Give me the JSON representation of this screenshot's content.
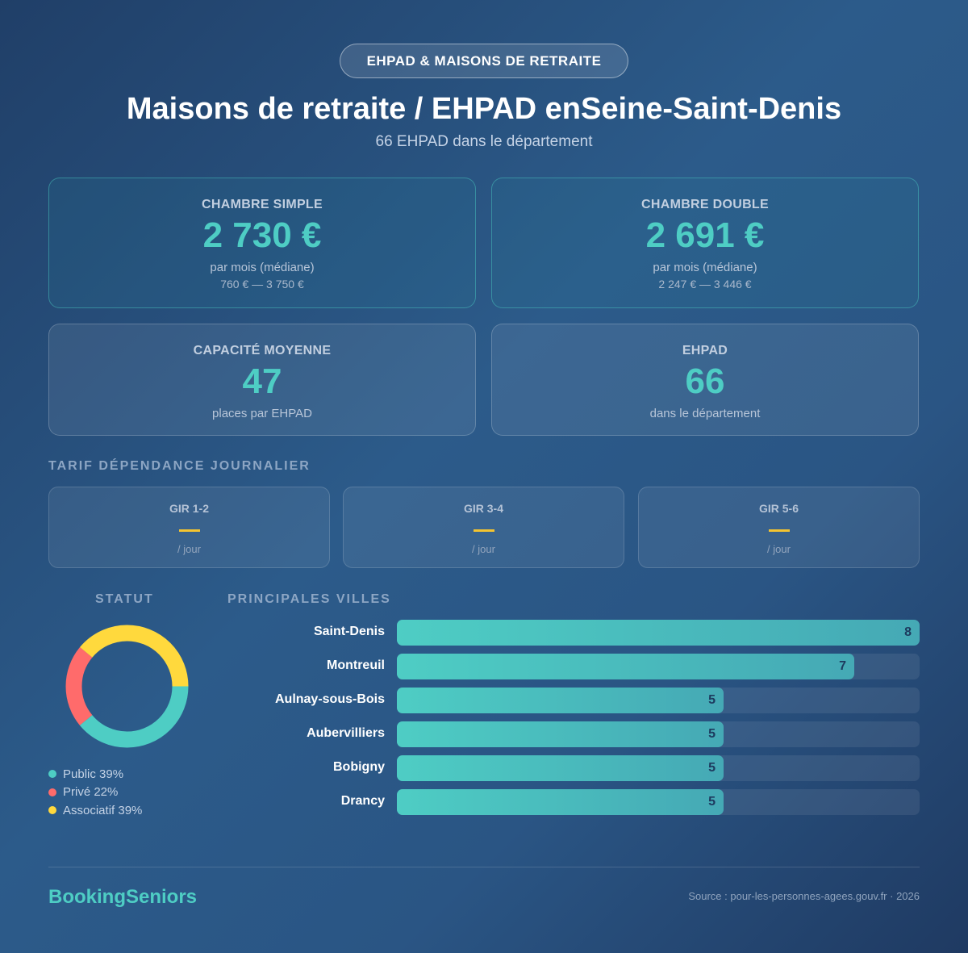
{
  "badge": "EHPAD & MAISONS DE RETRAITE",
  "title": "Maisons de retraite / EHPAD enSeine-Saint-Denis",
  "subtitle": "66 EHPAD dans le département",
  "cards": [
    {
      "label": "CHAMBRE SIMPLE",
      "value": "2 730 €",
      "unit": "par mois (médiane)",
      "range": "760 € — 3 750 €"
    },
    {
      "label": "CHAMBRE DOUBLE",
      "value": "2 691 €",
      "unit": "par mois (médiane)",
      "range": "2 247 € — 3 446 €"
    },
    {
      "label": "CAPACITÉ MOYENNE",
      "value": "47",
      "unit": "places par EHPAD"
    },
    {
      "label": "EHPAD",
      "value": "66",
      "unit": "dans le département"
    }
  ],
  "tarif": {
    "title": "TARIF DÉPENDANCE JOURNALIER",
    "items": [
      {
        "label": "GIR 1-2",
        "unit": "/ jour"
      },
      {
        "label": "GIR 3-4",
        "unit": "/ jour"
      },
      {
        "label": "GIR 5-6",
        "unit": "/ jour"
      }
    ]
  },
  "statut": {
    "title": "STATUT",
    "items": [
      {
        "label": "Public 39%",
        "pct": 39,
        "color": "#4ecdc4"
      },
      {
        "label": "Privé 22%",
        "pct": 22,
        "color": "#ff6b6b"
      },
      {
        "label": "Associatif 39%",
        "pct": 39,
        "color": "#ffd93d"
      }
    ]
  },
  "villes": {
    "title": "PRINCIPALES VILLES",
    "max": 8,
    "items": [
      {
        "city": "Saint-Denis",
        "count": "8"
      },
      {
        "city": "Montreuil",
        "count": "7"
      },
      {
        "city": "Aulnay-sous-Bois",
        "count": "5"
      },
      {
        "city": "Aubervilliers",
        "count": "5"
      },
      {
        "city": "Bobigny",
        "count": "5"
      },
      {
        "city": "Drancy",
        "count": "5"
      }
    ]
  },
  "footer": {
    "brand": "BookingSeniors",
    "source": "Source : pour-les-personnes-agees.gouv.fr · 2026"
  }
}
